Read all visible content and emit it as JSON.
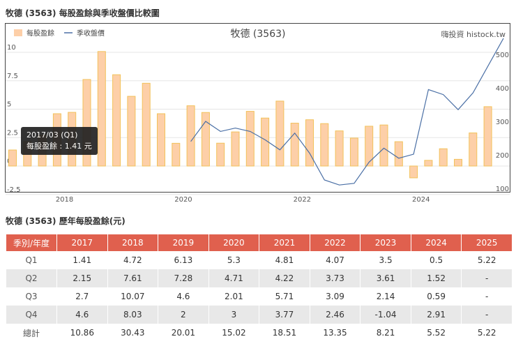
{
  "chart_heading": "牧德 (3563) 每股盈餘與季收盤價比較圖",
  "table_heading": "牧德 (3563) 歷年每股盈餘(元)",
  "chart_data": {
    "type": "bar+line",
    "title": "牧德 (3563)",
    "credit": "嗨投資 histock.tw",
    "legend": {
      "placement": "top-left",
      "items": [
        "每股盈餘",
        "季收盤價"
      ]
    },
    "colors": {
      "eps_fill": "#fdcfa8",
      "eps_stroke": "#f2c25a",
      "price": "#4a6fa5"
    },
    "x_ticks": [
      "2018",
      "2020",
      "2022",
      "2024"
    ],
    "y_left": {
      "ticks": [
        "-2.5",
        "0",
        "2.5",
        "5",
        "7.5",
        "10"
      ],
      "range": [
        -2.5,
        10
      ]
    },
    "y_right": {
      "ticks": [
        "100",
        "200",
        "300",
        "400",
        "500"
      ],
      "range": [
        100,
        500
      ]
    },
    "quarters": [
      "2017Q1",
      "2017Q2",
      "2017Q3",
      "2017Q4",
      "2018Q1",
      "2018Q2",
      "2018Q3",
      "2018Q4",
      "2019Q1",
      "2019Q2",
      "2019Q3",
      "2019Q4",
      "2020Q1",
      "2020Q2",
      "2020Q3",
      "2020Q4",
      "2021Q1",
      "2021Q2",
      "2021Q3",
      "2021Q4",
      "2022Q1",
      "2022Q2",
      "2022Q3",
      "2022Q4",
      "2023Q1",
      "2023Q2",
      "2023Q3",
      "2023Q4",
      "2024Q1",
      "2024Q2",
      "2024Q3",
      "2024Q4",
      "2025Q1"
    ],
    "series": [
      {
        "name": "每股盈餘",
        "type": "bar",
        "axis": "left",
        "values": [
          1.41,
          2.15,
          2.7,
          4.6,
          4.72,
          7.61,
          10.07,
          8.03,
          6.13,
          7.28,
          4.6,
          2,
          5.3,
          4.71,
          2.01,
          3,
          4.81,
          4.22,
          5.71,
          3.77,
          4.07,
          3.73,
          3.09,
          2.46,
          3.5,
          3.61,
          2.14,
          -1.04,
          0.5,
          1.52,
          0.59,
          2.91,
          5.22
        ]
      },
      {
        "name": "季收盤價",
        "type": "line",
        "axis": "right",
        "values": [
          null,
          null,
          null,
          null,
          null,
          null,
          null,
          null,
          null,
          null,
          null,
          null,
          240,
          300,
          270,
          280,
          270,
          245,
          215,
          265,
          205,
          125,
          110,
          115,
          178,
          220,
          190,
          202,
          395,
          380,
          335,
          385,
          548
        ]
      }
    ],
    "tooltip": {
      "title": "2017/03 (Q1)",
      "text": "每股盈餘 : 1.41 元"
    },
    "grid": true
  },
  "table": {
    "headers": [
      "季別/年度",
      "2017",
      "2018",
      "2019",
      "2020",
      "2021",
      "2022",
      "2023",
      "2024",
      "2025"
    ],
    "rows": [
      [
        "Q1",
        "1.41",
        "4.72",
        "6.13",
        "5.3",
        "4.81",
        "4.07",
        "3.5",
        "0.5",
        "5.22"
      ],
      [
        "Q2",
        "2.15",
        "7.61",
        "7.28",
        "4.71",
        "4.22",
        "3.73",
        "3.61",
        "1.52",
        "-"
      ],
      [
        "Q3",
        "2.7",
        "10.07",
        "4.6",
        "2.01",
        "5.71",
        "3.09",
        "2.14",
        "0.59",
        "-"
      ],
      [
        "Q4",
        "4.6",
        "8.03",
        "2",
        "3",
        "3.77",
        "2.46",
        "-1.04",
        "2.91",
        "-"
      ],
      [
        "總計",
        "10.86",
        "30.43",
        "20.01",
        "15.02",
        "18.51",
        "13.35",
        "8.21",
        "5.52",
        "5.22"
      ]
    ]
  }
}
